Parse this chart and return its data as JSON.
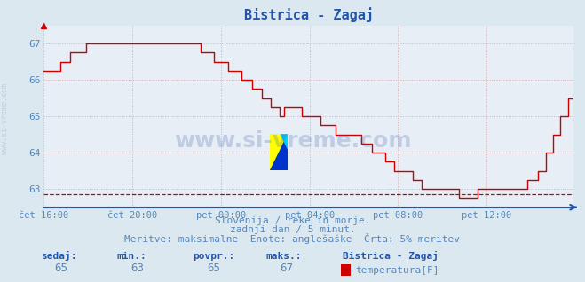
{
  "title": "Bistrica - Zagaj",
  "bg_color": "#dce8f0",
  "plot_bg_color": "#e8eef5",
  "line_color": "#cc0000",
  "grid_color_h": "#ddaaaa",
  "grid_color_v": "#ddaaaa",
  "axis_color": "#2255aa",
  "text_color": "#5588bb",
  "bold_color": "#2255aa",
  "ylim": [
    62.5,
    67.5
  ],
  "yticks": [
    63,
    64,
    65,
    66,
    67
  ],
  "xlim": [
    0,
    287
  ],
  "xtick_positions": [
    0,
    48,
    96,
    144,
    192,
    240
  ],
  "xtick_labels": [
    "čet 16:00",
    "čet 20:00",
    "pet 00:00",
    "pet 04:00",
    "pet 08:00",
    "pet 12:00"
  ],
  "hline_y": 62.85,
  "subtitle1": "Slovenija / reke in morje.",
  "subtitle2": "zadnji dan / 5 minut.",
  "subtitle3": "Meritve: maksimalne  Enote: anglešaške  Črta: 5% meritev",
  "footer_labels": [
    "sedaj:",
    "min.:",
    "povpr.:",
    "maks.:"
  ],
  "footer_values": [
    "65",
    "63",
    "65",
    "67"
  ],
  "footer_station": "Bistrica - Zagaj",
  "footer_series": "temperatura[F]",
  "watermark": "www.si-vreme.com",
  "sidebar": "www.si-vreme.com"
}
